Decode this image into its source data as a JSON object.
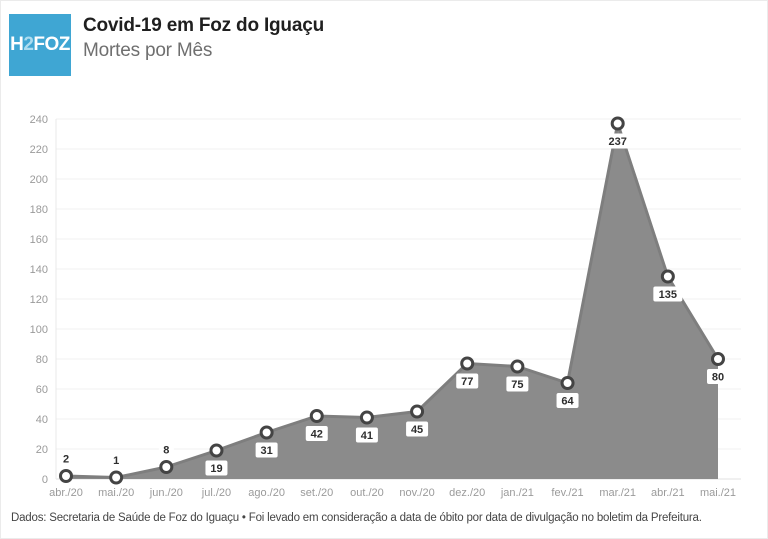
{
  "header": {
    "logo": {
      "part1": "H",
      "part2": "2",
      "part3": "FOZ",
      "bg_color": "#3fa6d3"
    },
    "title": "Covid-19 em Foz do Iguaçu",
    "subtitle": "Mortes por Mês"
  },
  "chart_data": {
    "type": "area",
    "title": "Covid-19 em Foz do Iguaçu",
    "subtitle": "Mortes por Mês",
    "categories": [
      "abr./20",
      "mai./20",
      "jun./20",
      "jul./20",
      "ago./20",
      "set./20",
      "out./20",
      "nov./20",
      "dez./20",
      "jan./21",
      "fev./21",
      "mar./21",
      "abr./21",
      "mai./21"
    ],
    "values": [
      2,
      1,
      8,
      19,
      31,
      42,
      41,
      45,
      77,
      75,
      64,
      237,
      135,
      80
    ],
    "xlabel": "",
    "ylabel": "",
    "ylim": [
      0,
      240
    ],
    "yticks": [
      0,
      20,
      40,
      60,
      80,
      100,
      120,
      140,
      160,
      180,
      200,
      220,
      240
    ],
    "grid": true,
    "legend": "none",
    "data_labels": true,
    "labels_above": [
      0,
      1,
      2
    ],
    "colors": {
      "area_fill": "#8b8b8b",
      "line": "#7e7e7e",
      "marker_fill": "#ffffff",
      "marker_stroke": "#444444",
      "label_text": "#2e2e2e",
      "label_bg": "#ffffff",
      "axis_text": "#9a9a9a",
      "gridline": "#f0f0f0",
      "baseline": "#e2e2e2",
      "axisline": "#e9e9e9"
    }
  },
  "footer": {
    "source": "Dados: Secretaria de Saúde de Foz do Iguaçu • Foi levado em consideração a data de óbito por data de divulgação no boletim da Prefeitura."
  }
}
